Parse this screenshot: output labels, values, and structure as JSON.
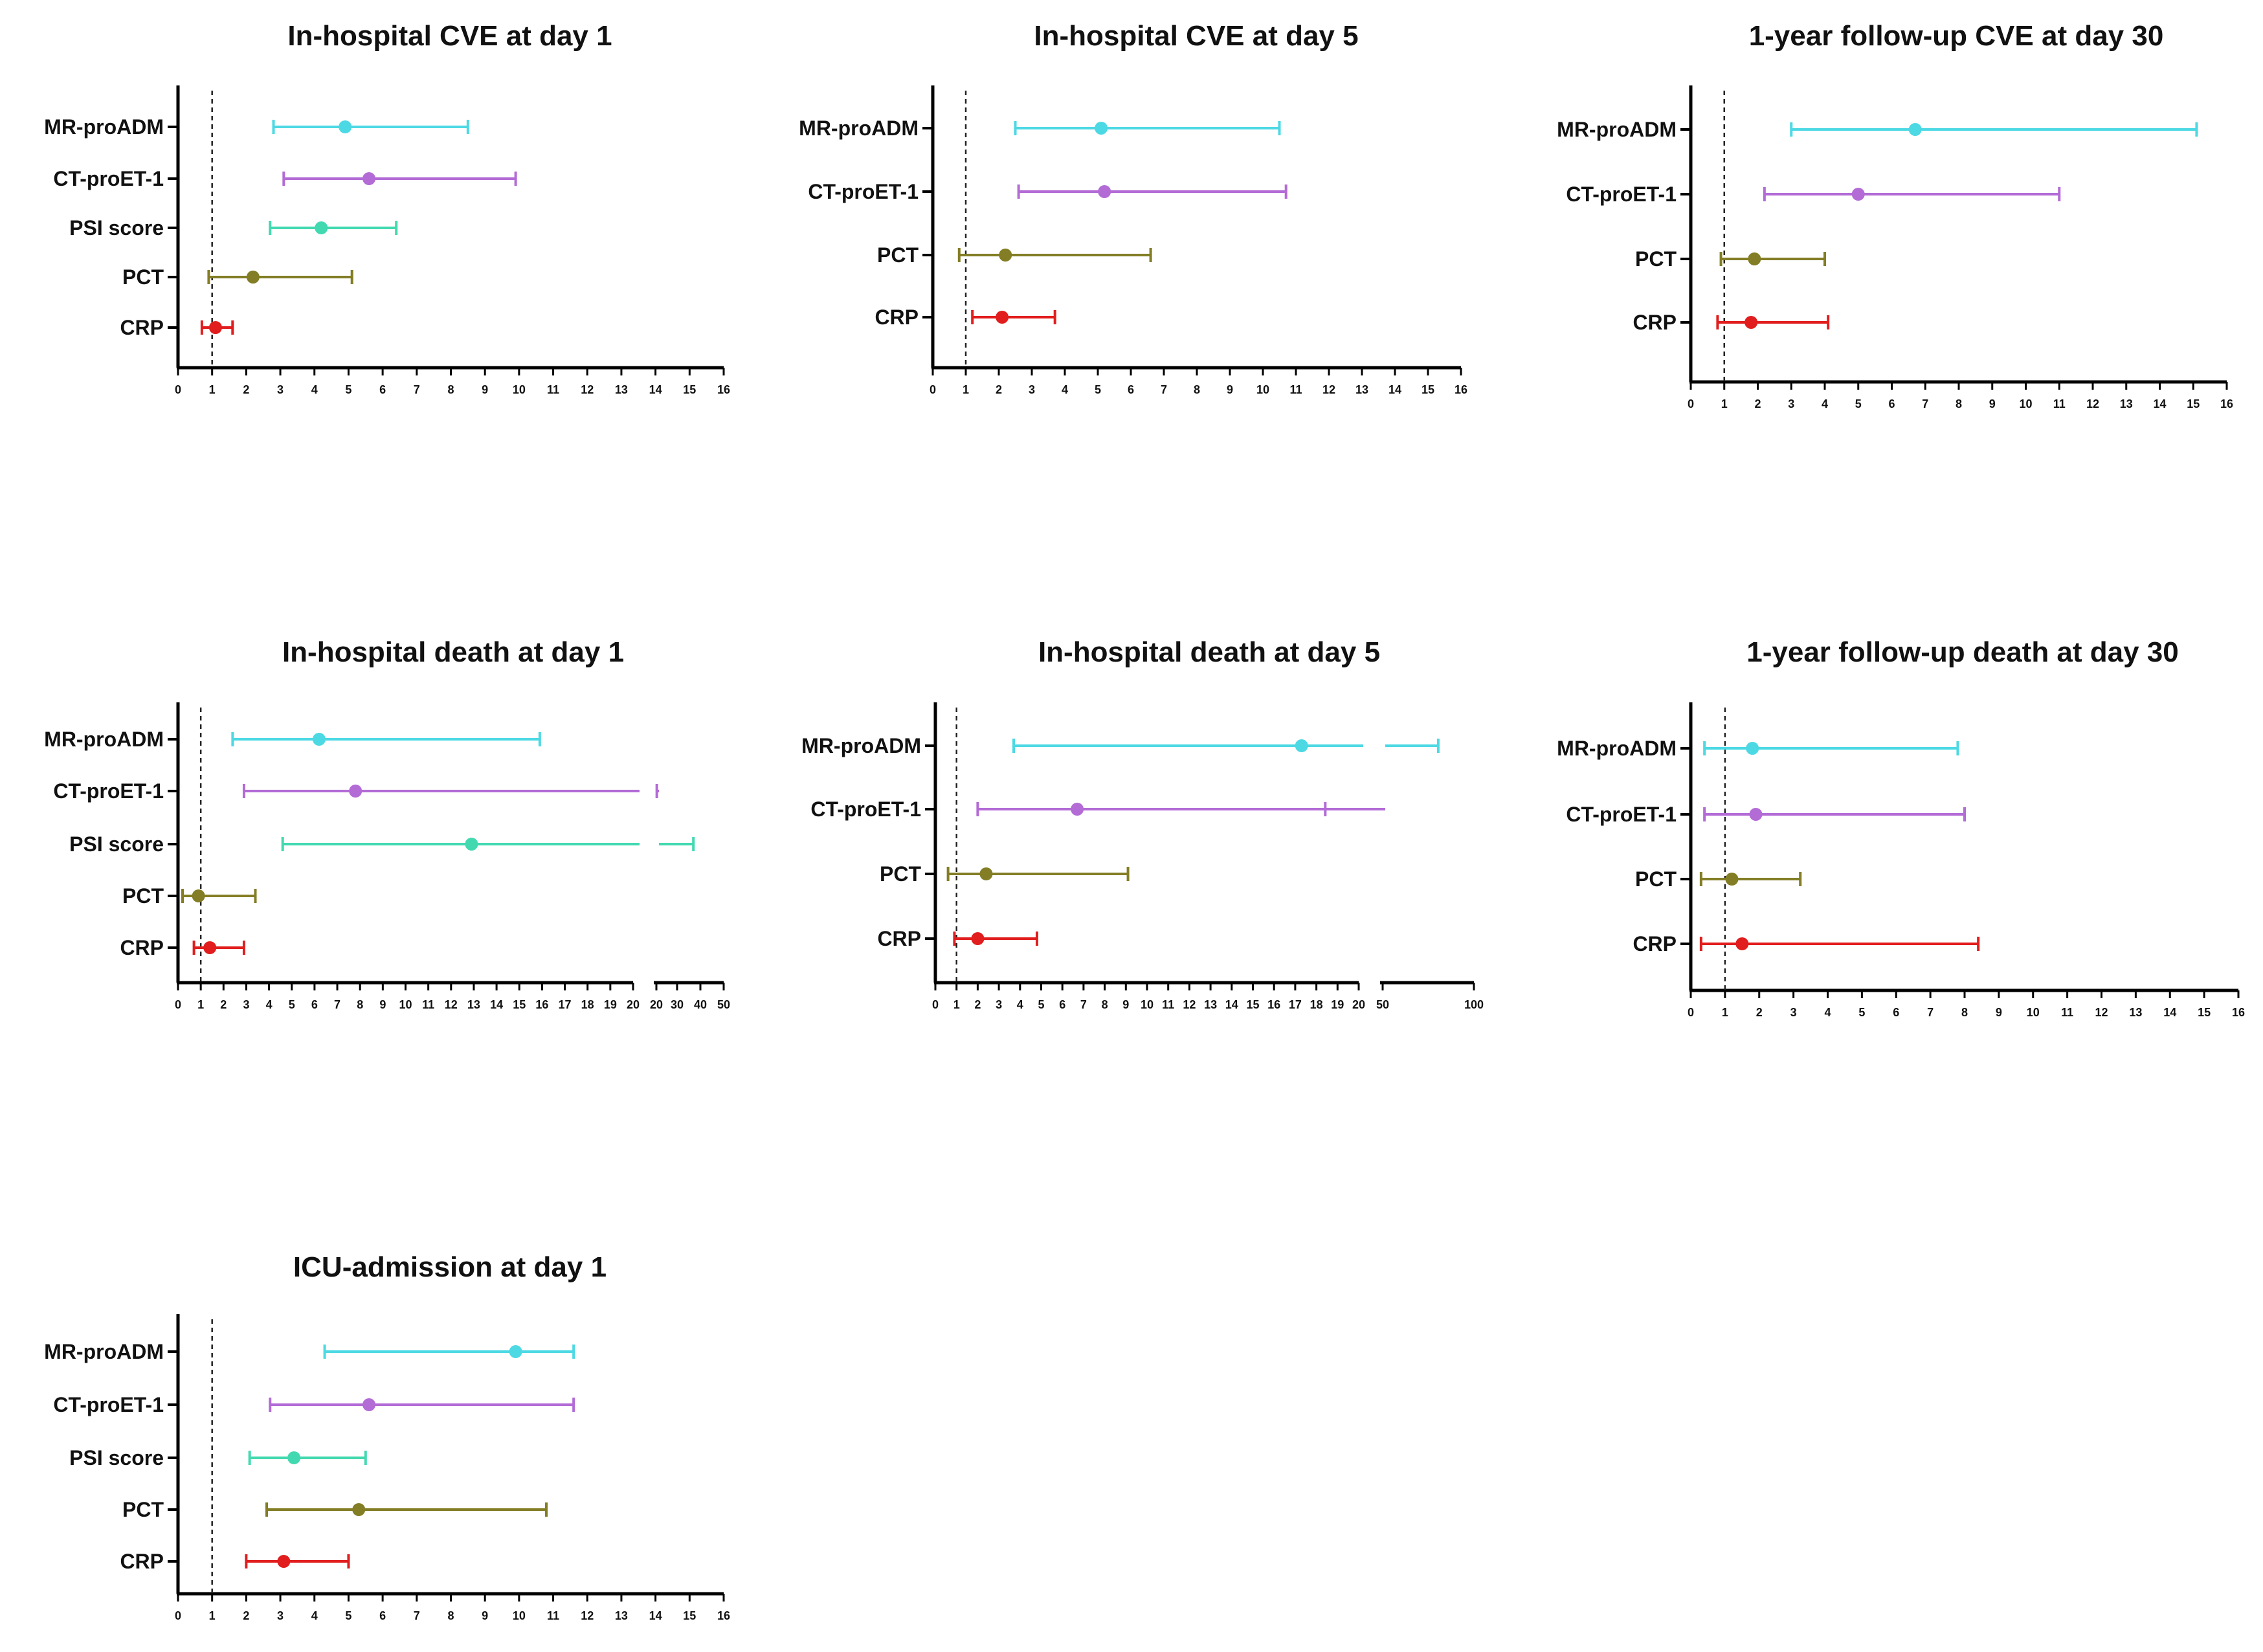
{
  "chart_data": [
    {
      "type": "forest",
      "title": "In-hospital CVE at day 1",
      "ylabels": [
        "MR-proADM",
        "CT-proET-1",
        "PSI score",
        "PCT",
        "CRP"
      ],
      "series": [
        {
          "name": "MR-proADM",
          "color": "#4dd9e4",
          "point": 4.9,
          "low": 2.8,
          "high": 8.5
        },
        {
          "name": "CT-proET-1",
          "color": "#b36bd6",
          "point": 5.6,
          "low": 3.1,
          "high": 9.9
        },
        {
          "name": "PSI score",
          "color": "#43d9b0",
          "point": 4.2,
          "low": 2.7,
          "high": 6.4
        },
        {
          "name": "PCT",
          "color": "#837d25",
          "point": 2.2,
          "low": 0.9,
          "high": 5.1
        },
        {
          "name": "CRP",
          "color": "#e11d1d",
          "point": 1.1,
          "low": 0.7,
          "high": 1.6
        }
      ],
      "xticks": [
        "0",
        "1",
        "2",
        "3",
        "4",
        "5",
        "6",
        "7",
        "8",
        "9",
        "10",
        "11",
        "12",
        "13",
        "14",
        "15",
        "16"
      ],
      "xlim": [
        0,
        16
      ],
      "reference": 1
    },
    {
      "type": "forest",
      "title": "In-hospital CVE at day 5",
      "ylabels": [
        "MR-proADM",
        "CT-proET-1",
        "PCT",
        "CRP"
      ],
      "series": [
        {
          "name": "MR-proADM",
          "color": "#4dd9e4",
          "point": 5.1,
          "low": 2.5,
          "high": 10.5
        },
        {
          "name": "CT-proET-1",
          "color": "#b36bd6",
          "point": 5.2,
          "low": 2.6,
          "high": 10.7
        },
        {
          "name": "PCT",
          "color": "#837d25",
          "point": 2.2,
          "low": 0.8,
          "high": 6.6
        },
        {
          "name": "CRP",
          "color": "#e11d1d",
          "point": 2.1,
          "low": 1.2,
          "high": 3.7
        }
      ],
      "xticks": [
        "0",
        "1",
        "2",
        "3",
        "4",
        "5",
        "6",
        "7",
        "8",
        "9",
        "10",
        "11",
        "12",
        "13",
        "14",
        "15",
        "16"
      ],
      "xlim": [
        0,
        16
      ],
      "reference": 1
    },
    {
      "type": "forest",
      "title": "1-year follow-up CVE at day 30",
      "ylabels": [
        "MR-proADM",
        "CT-proET-1",
        "PCT",
        "CRP"
      ],
      "series": [
        {
          "name": "MR-proADM",
          "color": "#4dd9e4",
          "point": 6.7,
          "low": 3.0,
          "high": 15.1
        },
        {
          "name": "CT-proET-1",
          "color": "#b36bd6",
          "point": 5.0,
          "low": 2.2,
          "high": 11.0
        },
        {
          "name": "PCT",
          "color": "#837d25",
          "point": 1.9,
          "low": 0.9,
          "high": 4.0
        },
        {
          "name": "CRP",
          "color": "#e11d1d",
          "point": 1.8,
          "low": 0.8,
          "high": 4.1
        }
      ],
      "xticks": [
        "0",
        "1",
        "2",
        "3",
        "4",
        "5",
        "6",
        "7",
        "8",
        "9",
        "10",
        "11",
        "12",
        "13",
        "14",
        "15",
        "16"
      ],
      "xlim": [
        0,
        16
      ],
      "reference": 1
    },
    {
      "type": "forest",
      "title": "In-hospital death at day 1",
      "ylabels": [
        "MR-proADM",
        "CT-proET-1",
        "PSI score",
        "PCT",
        "CRP"
      ],
      "series": [
        {
          "name": "MR-proADM",
          "color": "#4dd9e4",
          "point": 6.2,
          "low": 2.4,
          "high": 15.9,
          "arrow": false
        },
        {
          "name": "CT-proET-1",
          "color": "#b36bd6",
          "point": 7.8,
          "low": 2.9,
          "high": 21.3
        },
        {
          "name": "PSI score",
          "color": "#43d9b0",
          "point": 12.9,
          "low": 4.6,
          "high": 37.0
        },
        {
          "name": "PCT",
          "color": "#837d25",
          "point": 0.9,
          "low": 0.2,
          "high": 3.4
        },
        {
          "name": "CRP",
          "color": "#e11d1d",
          "point": 1.4,
          "low": 0.7,
          "high": 2.9
        }
      ],
      "xticks": [
        "0",
        "1",
        "2",
        "3",
        "4",
        "5",
        "6",
        "7",
        "8",
        "9",
        "10",
        "11",
        "12",
        "13",
        "14",
        "15",
        "16",
        "17",
        "18",
        "19",
        "20"
      ],
      "xticks_2": [
        "20",
        "30",
        "40",
        "50"
      ],
      "xlim": [
        0,
        20
      ],
      "xlim_2": [
        20,
        50
      ],
      "reference": 1
    },
    {
      "type": "forest",
      "title": "In-hospital death at day 5",
      "ylabels": [
        "MR-proADM",
        "CT-proET-1",
        "PCT",
        "CRP"
      ],
      "series": [
        {
          "name": "MR-proADM",
          "color": "#4dd9e4",
          "point": 17.3,
          "low": 3.7,
          "high": 81.0
        },
        {
          "name": "CT-proET-1",
          "color": "#b36bd6",
          "point": 6.7,
          "low": 2.0,
          "high": 20.8
        },
        {
          "name": "PCT",
          "color": "#837d25",
          "point": 2.4,
          "low": 0.6,
          "high": 9.1
        },
        {
          "name": "CRP",
          "color": "#e11d1d",
          "point": 2.0,
          "low": 0.9,
          "high": 4.8
        }
      ],
      "xticks": [
        "0",
        "1",
        "2",
        "3",
        "4",
        "5",
        "6",
        "7",
        "8",
        "9",
        "10",
        "11",
        "12",
        "13",
        "14",
        "15",
        "16",
        "17",
        "18",
        "19",
        "20"
      ],
      "xticks_2": [
        "50",
        "100"
      ],
      "xlim": [
        0,
        20
      ],
      "xlim_2": [
        50,
        100
      ],
      "reference": 1
    },
    {
      "type": "forest",
      "title": "1-year follow-up death at day 30",
      "ylabels": [
        "MR-proADM",
        "CT-proET-1",
        "PCT",
        "CRP"
      ],
      "series": [
        {
          "name": "MR-proADM",
          "color": "#4dd9e4",
          "point": 1.8,
          "low": 0.4,
          "high": 7.8
        },
        {
          "name": "CT-proET-1",
          "color": "#b36bd6",
          "point": 1.9,
          "low": 0.4,
          "high": 8.0
        },
        {
          "name": "PCT",
          "color": "#837d25",
          "point": 1.2,
          "low": 0.3,
          "high": 3.2
        },
        {
          "name": "CRP",
          "color": "#e11d1d",
          "point": 1.5,
          "low": 0.3,
          "high": 8.4
        }
      ],
      "xticks": [
        "0",
        "1",
        "2",
        "3",
        "4",
        "5",
        "6",
        "7",
        "8",
        "9",
        "10",
        "11",
        "12",
        "13",
        "14",
        "15",
        "16"
      ],
      "xlim": [
        0,
        16
      ],
      "reference": 1
    },
    {
      "type": "forest",
      "title": "ICU-admission at day 1",
      "ylabels": [
        "MR-proADM",
        "CT-proET-1",
        "PSI score",
        "PCT",
        "CRP"
      ],
      "series": [
        {
          "name": "MR-proADM",
          "color": "#4dd9e4",
          "point": 9.9,
          "low": 4.3,
          "high": 11.6
        },
        {
          "name": "CT-proET-1",
          "color": "#b36bd6",
          "point": 5.6,
          "low": 2.7,
          "high": 11.6
        },
        {
          "name": "PSI score",
          "color": "#43d9b0",
          "point": 3.4,
          "low": 2.1,
          "high": 5.5
        },
        {
          "name": "PCT",
          "color": "#837d25",
          "point": 5.3,
          "low": 2.6,
          "high": 10.8
        },
        {
          "name": "CRP",
          "color": "#e11d1d",
          "point": 3.1,
          "low": 2.0,
          "high": 5.0
        }
      ],
      "xticks": [
        "0",
        "1",
        "2",
        "3",
        "4",
        "5",
        "6",
        "7",
        "8",
        "9",
        "10",
        "11",
        "12",
        "13",
        "14",
        "15",
        "16"
      ],
      "xlim": [
        0,
        16
      ],
      "reference": 1
    }
  ]
}
